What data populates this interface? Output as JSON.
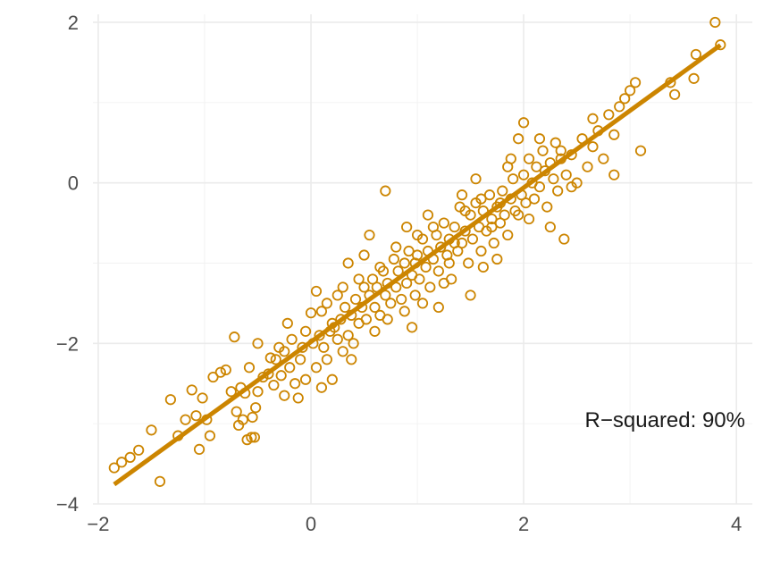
{
  "chart_data": {
    "type": "scatter",
    "title": "",
    "xlabel": "",
    "ylabel": "",
    "xlim": [
      -2.05,
      4.15
    ],
    "ylim": [
      -4.0,
      2.1
    ],
    "x_ticks": [
      -2,
      0,
      2,
      4
    ],
    "y_ticks": [
      -4,
      -2,
      0,
      2
    ],
    "x_tick_labels": [
      "−2",
      "0",
      "2",
      "4"
    ],
    "y_tick_labels": [
      "−4",
      "−2",
      "0",
      "2"
    ],
    "grid": true,
    "legend": "none",
    "color": "#cc8500",
    "fit_line": {
      "slope": 0.96,
      "intercept": -1.98,
      "x_range": [
        -1.85,
        3.85
      ]
    },
    "annotation": "R−squared: 90%",
    "series": [
      {
        "points": [
          [
            -1.85,
            -3.55
          ],
          [
            -1.78,
            -3.48
          ],
          [
            -1.7,
            -3.42
          ],
          [
            -1.62,
            -3.33
          ],
          [
            -1.5,
            -3.08
          ],
          [
            -1.42,
            -3.72
          ],
          [
            -1.32,
            -2.7
          ],
          [
            -1.25,
            -3.15
          ],
          [
            -1.18,
            -2.95
          ],
          [
            -1.12,
            -2.58
          ],
          [
            -1.08,
            -2.9
          ],
          [
            -1.05,
            -3.32
          ],
          [
            -1.02,
            -2.68
          ],
          [
            -0.98,
            -2.95
          ],
          [
            -0.95,
            -3.15
          ],
          [
            -0.92,
            -2.42
          ],
          [
            -0.85,
            -2.36
          ],
          [
            -0.8,
            -2.33
          ],
          [
            -0.75,
            -2.6
          ],
          [
            -0.72,
            -1.92
          ],
          [
            -0.7,
            -2.85
          ],
          [
            -0.68,
            -3.02
          ],
          [
            -0.66,
            -2.55
          ],
          [
            -0.64,
            -2.95
          ],
          [
            -0.62,
            -2.62
          ],
          [
            -0.6,
            -3.2
          ],
          [
            -0.58,
            -2.3
          ],
          [
            -0.56,
            -3.17
          ],
          [
            -0.55,
            -2.92
          ],
          [
            -0.53,
            -3.17
          ],
          [
            -0.52,
            -2.8
          ],
          [
            -0.5,
            -2.6
          ],
          [
            -0.45,
            -2.42
          ],
          [
            -0.4,
            -2.38
          ],
          [
            -0.38,
            -2.18
          ],
          [
            -0.35,
            -2.52
          ],
          [
            -0.33,
            -2.2
          ],
          [
            -0.3,
            -2.05
          ],
          [
            -0.28,
            -2.4
          ],
          [
            -0.25,
            -2.65
          ],
          [
            -0.22,
            -1.75
          ],
          [
            -0.2,
            -2.3
          ],
          [
            -0.18,
            -1.95
          ],
          [
            -0.15,
            -2.5
          ],
          [
            -0.12,
            -2.68
          ],
          [
            -0.1,
            -2.2
          ],
          [
            -0.08,
            -2.05
          ],
          [
            -0.05,
            -1.85
          ],
          [
            0.0,
            -1.62
          ],
          [
            0.02,
            -2.0
          ],
          [
            0.05,
            -2.3
          ],
          [
            0.08,
            -1.9
          ],
          [
            0.1,
            -1.6
          ],
          [
            0.12,
            -2.05
          ],
          [
            0.15,
            -2.2
          ],
          [
            0.18,
            -1.85
          ],
          [
            0.2,
            -2.45
          ],
          [
            0.22,
            -1.8
          ],
          [
            0.25,
            -1.95
          ],
          [
            0.28,
            -1.7
          ],
          [
            0.3,
            -2.1
          ],
          [
            0.32,
            -1.55
          ],
          [
            0.35,
            -1.9
          ],
          [
            0.38,
            -1.65
          ],
          [
            0.4,
            -2.0
          ],
          [
            0.42,
            -1.45
          ],
          [
            0.45,
            -1.75
          ],
          [
            0.48,
            -1.55
          ],
          [
            0.5,
            -1.3
          ],
          [
            0.52,
            -1.7
          ],
          [
            0.55,
            -1.4
          ],
          [
            0.58,
            -1.2
          ],
          [
            0.6,
            -1.55
          ],
          [
            0.62,
            -1.3
          ],
          [
            0.65,
            -1.65
          ],
          [
            0.68,
            -1.1
          ],
          [
            0.7,
            -1.4
          ],
          [
            0.72,
            -1.25
          ],
          [
            0.75,
            -1.5
          ],
          [
            0.78,
            -0.95
          ],
          [
            0.8,
            -1.3
          ],
          [
            0.82,
            -1.1
          ],
          [
            0.85,
            -1.45
          ],
          [
            0.88,
            -1.0
          ],
          [
            0.9,
            -1.25
          ],
          [
            0.92,
            -0.85
          ],
          [
            0.95,
            -1.15
          ],
          [
            0.98,
            -1.4
          ],
          [
            1.0,
            -0.9
          ],
          [
            1.02,
            -1.2
          ],
          [
            1.05,
            -0.7
          ],
          [
            1.08,
            -1.05
          ],
          [
            1.1,
            -0.85
          ],
          [
            1.12,
            -1.3
          ],
          [
            1.15,
            -0.95
          ],
          [
            1.18,
            -0.65
          ],
          [
            1.2,
            -1.1
          ],
          [
            1.22,
            -0.8
          ],
          [
            1.25,
            -0.5
          ],
          [
            1.28,
            -0.9
          ],
          [
            1.3,
            -0.7
          ],
          [
            1.32,
            -1.2
          ],
          [
            1.35,
            -0.55
          ],
          [
            1.38,
            -0.85
          ],
          [
            1.4,
            -0.3
          ],
          [
            1.42,
            -0.75
          ],
          [
            1.45,
            -0.6
          ],
          [
            1.48,
            -1.0
          ],
          [
            1.5,
            -0.4
          ],
          [
            1.52,
            -0.7
          ],
          [
            1.55,
            -0.25
          ],
          [
            1.58,
            -0.55
          ],
          [
            1.6,
            -0.85
          ],
          [
            1.62,
            -0.35
          ],
          [
            1.65,
            -0.6
          ],
          [
            1.68,
            -0.15
          ],
          [
            1.7,
            -0.45
          ],
          [
            1.72,
            -0.75
          ],
          [
            1.75,
            -0.3
          ],
          [
            1.78,
            -0.5
          ],
          [
            1.8,
            -0.1
          ],
          [
            1.82,
            -0.4
          ],
          [
            1.85,
            -0.65
          ],
          [
            1.88,
            -0.2
          ],
          [
            1.9,
            0.05
          ],
          [
            1.92,
            -0.35
          ],
          [
            1.95,
            0.55
          ],
          [
            1.98,
            -0.15
          ],
          [
            2.0,
            0.1
          ],
          [
            2.02,
            -0.25
          ],
          [
            2.05,
            0.3
          ],
          [
            2.08,
            0.0
          ],
          [
            2.1,
            -0.2
          ],
          [
            2.12,
            0.2
          ],
          [
            2.15,
            -0.05
          ],
          [
            2.18,
            0.4
          ],
          [
            2.2,
            0.15
          ],
          [
            2.22,
            -0.3
          ],
          [
            2.25,
            0.25
          ],
          [
            2.28,
            0.05
          ],
          [
            2.3,
            0.5
          ],
          [
            2.32,
            -0.1
          ],
          [
            2.35,
            0.3
          ],
          [
            2.38,
            -0.7
          ],
          [
            2.4,
            0.1
          ],
          [
            2.45,
            0.35
          ],
          [
            2.5,
            0.0
          ],
          [
            2.55,
            0.55
          ],
          [
            2.6,
            0.2
          ],
          [
            2.65,
            0.45
          ],
          [
            2.7,
            0.65
          ],
          [
            2.75,
            0.3
          ],
          [
            2.8,
            0.85
          ],
          [
            2.85,
            0.6
          ],
          [
            2.9,
            0.95
          ],
          [
            2.95,
            1.05
          ],
          [
            3.0,
            1.15
          ],
          [
            3.05,
            1.25
          ],
          [
            3.1,
            0.4
          ],
          [
            3.38,
            1.25
          ],
          [
            3.42,
            1.1
          ],
          [
            3.6,
            1.3
          ],
          [
            3.62,
            1.6
          ],
          [
            3.8,
            2.0
          ],
          [
            3.85,
            1.72
          ],
          [
            0.7,
            -0.1
          ],
          [
            1.5,
            -1.4
          ],
          [
            0.95,
            -1.8
          ],
          [
            1.75,
            -0.95
          ],
          [
            2.35,
            0.4
          ],
          [
            2.0,
            0.75
          ],
          [
            0.3,
            -1.3
          ],
          [
            1.25,
            -1.25
          ],
          [
            0.55,
            -0.65
          ],
          [
            1.1,
            -0.4
          ],
          [
            -0.25,
            -2.1
          ],
          [
            0.1,
            -2.55
          ],
          [
            1.6,
            -0.2
          ],
          [
            2.85,
            0.1
          ],
          [
            0.8,
            -0.8
          ],
          [
            1.3,
            -1.0
          ],
          [
            1.45,
            -0.35
          ],
          [
            0.2,
            -1.75
          ],
          [
            0.65,
            -1.05
          ],
          [
            1.0,
            -0.65
          ],
          [
            1.95,
            -0.4
          ],
          [
            2.15,
            0.55
          ],
          [
            0.45,
            -1.2
          ],
          [
            -0.5,
            -2.0
          ],
          [
            1.7,
            -0.55
          ],
          [
            0.25,
            -1.4
          ],
          [
            0.9,
            -0.55
          ],
          [
            1.35,
            -0.75
          ],
          [
            2.45,
            -0.05
          ],
          [
            0.6,
            -1.85
          ],
          [
            1.15,
            -0.55
          ],
          [
            1.55,
            0.05
          ],
          [
            0.05,
            -1.35
          ],
          [
            0.88,
            -1.6
          ],
          [
            1.62,
            -1.05
          ],
          [
            2.25,
            -0.55
          ],
          [
            -0.05,
            -2.45
          ],
          [
            0.35,
            -1.0
          ],
          [
            1.85,
            0.2
          ],
          [
            2.65,
            0.8
          ],
          [
            1.05,
            -1.5
          ],
          [
            0.72,
            -1.7
          ],
          [
            0.15,
            -1.5
          ],
          [
            1.42,
            -0.15
          ],
          [
            0.5,
            -0.9
          ],
          [
            0.98,
            -1.0
          ],
          [
            1.78,
            -0.25
          ],
          [
            2.05,
            -0.45
          ],
          [
            0.38,
            -2.2
          ],
          [
            1.2,
            -1.55
          ],
          [
            1.88,
            0.3
          ]
        ]
      }
    ]
  }
}
